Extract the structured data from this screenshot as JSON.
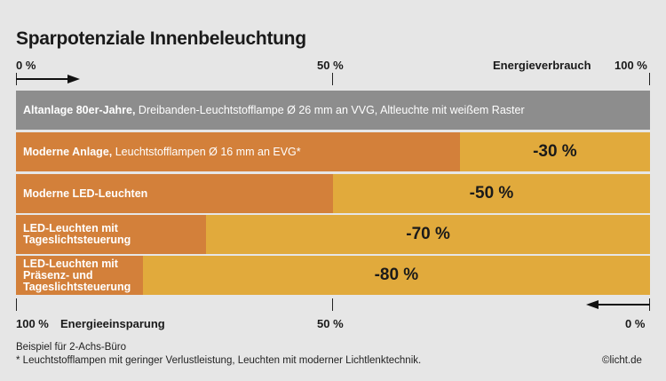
{
  "chart_data": {
    "type": "bar",
    "title": "Sparpotenziale Innenbeleuchtung",
    "top_axis": {
      "label": "Energieverbrauch",
      "ticks": [
        "0 %",
        "50 %",
        "100 %"
      ]
    },
    "bottom_axis": {
      "label": "Energieeinsparung",
      "ticks": [
        "100 %",
        "50 %",
        "0 %"
      ]
    },
    "xlim": [
      0,
      100
    ],
    "colors": {
      "baseline": "#8d8d8d",
      "consumption": "#d3803a",
      "savings": "#e1aa3c"
    },
    "rows": [
      {
        "bold": "Altanlage 80er-Jahre,",
        "text": " Dreibanden-Leuchtstofflampe Ø 26 mm an VVG, Altleuchte mit weißem Raster",
        "consumption": 100,
        "savings_label": ""
      },
      {
        "bold": "Moderne Anlage,",
        "text": " Leuchtstofflampen Ø 16 mm an EVG*",
        "consumption": 70,
        "savings_label": "-30 %"
      },
      {
        "bold": "Moderne LED-Leuchten",
        "text": "",
        "consumption": 50,
        "savings_label": "-50 %"
      },
      {
        "bold": "LED-Leuchten mit Tageslichtsteuerung",
        "text": "",
        "consumption": 30,
        "savings_label": "-70 %"
      },
      {
        "bold": "LED-Leuchten mit Präsenz- und Tageslichtsteuerung",
        "text": "",
        "consumption": 20,
        "savings_label": "-80 %"
      }
    ]
  },
  "footer": {
    "note1": "Beispiel für 2-Achs-Büro",
    "note2": "* Leuchtstofflampen mit geringer Verlustleistung, Leuchten mit moderner Lichtlenktechnik.",
    "copyright": "©licht.de"
  }
}
